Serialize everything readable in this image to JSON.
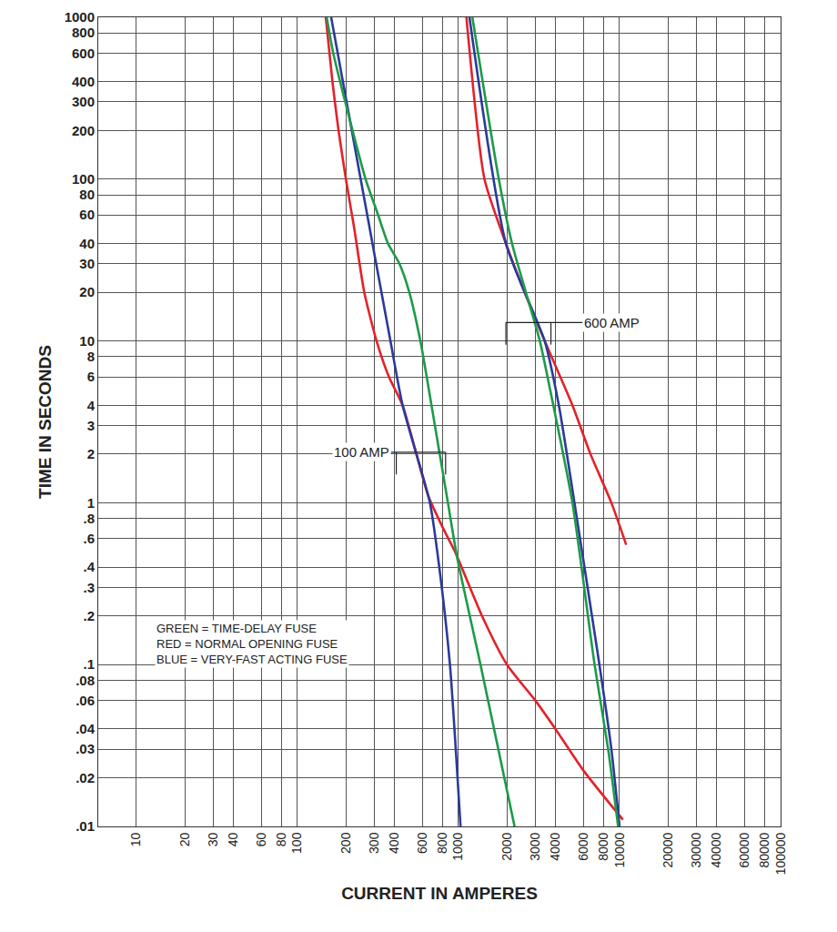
{
  "chart_data": {
    "type": "line",
    "log": true,
    "grid": true,
    "xlabel": "CURRENT IN AMPERES",
    "ylabel": "TIME IN SECONDS",
    "xlim": [
      5.8,
      100000
    ],
    "ylim": [
      0.01,
      1000
    ],
    "xticks": [
      10,
      20,
      30,
      40,
      60,
      80,
      100,
      200,
      300,
      400,
      600,
      800,
      1000,
      2000,
      3000,
      4000,
      6000,
      8000,
      10000,
      20000,
      30000,
      40000,
      60000,
      80000,
      100000
    ],
    "yticks": [
      1000,
      800,
      600,
      400,
      300,
      200,
      100,
      80,
      60,
      40,
      30,
      20,
      10,
      8,
      6,
      4,
      3,
      2,
      1,
      {
        "value": 0.8,
        "label": ".8"
      },
      {
        "value": 0.6,
        "label": ".6"
      },
      {
        "value": 0.4,
        "label": ".4"
      },
      {
        "value": 0.3,
        "label": ".3"
      },
      {
        "value": 0.2,
        "label": ".2"
      },
      {
        "value": 0.1,
        "label": ".1"
      },
      {
        "value": 0.08,
        "label": ".08"
      },
      {
        "value": 0.06,
        "label": ".06"
      },
      {
        "value": 0.04,
        "label": ".04"
      },
      {
        "value": 0.03,
        "label": ".03"
      },
      {
        "value": 0.02,
        "label": ".02"
      },
      {
        "value": 0.01,
        "label": ".01"
      }
    ],
    "series": [
      {
        "color": "#e3222b",
        "x": [
          150,
          165,
          180,
          200,
          225,
          260,
          310,
          370,
          450,
          548,
          650,
          800,
          950,
          1400,
          2000,
          3000,
          4000,
          6000,
          10500
        ],
        "values": [
          1000,
          400,
          200,
          100,
          50,
          20,
          10,
          6,
          4,
          2,
          1.1,
          0.7,
          0.5,
          0.2,
          0.1,
          0.06,
          0.04,
          0.022,
          0.011
        ]
      },
      {
        "color": "#2b3a9a",
        "x": [
          162,
          247,
          378,
          450,
          665,
          760,
          885,
          1030
        ],
        "values": [
          1000,
          100,
          10,
          4,
          1,
          0.4,
          0.1,
          0.01
        ]
      },
      {
        "color": "#1d9a49",
        "x": [
          152,
          167,
          220,
          265,
          317,
          365,
          430,
          495,
          580,
          680,
          860,
          985,
          1370,
          2230
        ],
        "values": [
          1000,
          600,
          200,
          100,
          60,
          40,
          30,
          20,
          10,
          4,
          1,
          0.45,
          0.1,
          0.01
        ]
      },
      {
        "color": "#e3222b",
        "x": [
          1120,
          1450,
          1970,
          2570,
          3430,
          5100,
          6600,
          8900,
          11000
        ],
        "values": [
          1000,
          100,
          40,
          20,
          10,
          4,
          2,
          1,
          0.55
        ]
      },
      {
        "color": "#2b3a9a",
        "x": [
          1170,
          1970,
          3430,
          4200,
          5250,
          7500,
          8900,
          10000
        ],
        "values": [
          1000,
          40,
          10,
          4,
          1,
          0.1,
          0.03,
          0.01
        ]
      },
      {
        "color": "#1d9a49",
        "x": [
          1220,
          1780,
          2150,
          2620,
          3200,
          3880,
          5100,
          7000,
          8500,
          9800
        ],
        "values": [
          1000,
          100,
          40,
          20,
          10,
          4,
          1,
          0.1,
          0.03,
          0.01
        ]
      }
    ],
    "annotations": [
      {
        "text": "100 AMP",
        "x": 380,
        "y": 2.05,
        "side": "left",
        "bracket": [
          411,
          832
        ]
      },
      {
        "text": "600 AMP",
        "x": 5900,
        "y": 13,
        "side": "right",
        "bracket": [
          1970,
          3750
        ]
      }
    ],
    "key": [
      "GREEN = TIME-DELAY FUSE",
      "RED = NORMAL OPENING FUSE",
      "BLUE = VERY-FAST ACTING FUSE"
    ]
  }
}
